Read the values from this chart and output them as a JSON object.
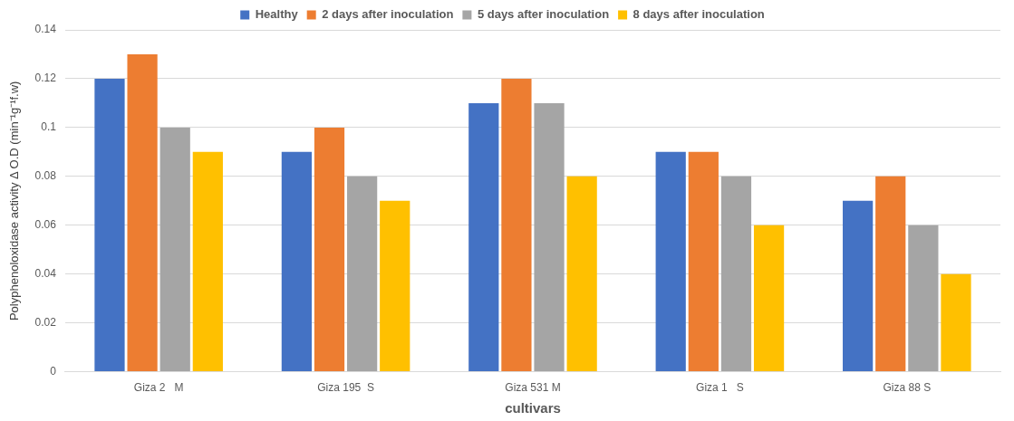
{
  "chart_data": {
    "type": "bar",
    "xlabel": "cultivars",
    "ylabel": "Polyphenoloxidase activity Δ O.D (min⁻¹g⁻¹f.w)",
    "categories": [
      "Giza 2   M",
      "Giza 195  S",
      "Giza 531 M",
      "Giza 1   S",
      "Giza 88 S"
    ],
    "series": [
      {
        "name": "Healthy",
        "color": "#4472c4",
        "values": [
          0.12,
          0.09,
          0.11,
          0.09,
          0.07
        ]
      },
      {
        "name": "2 days after inoculation",
        "color": "#ed7d31",
        "values": [
          0.13,
          0.1,
          0.12,
          0.09,
          0.08
        ]
      },
      {
        "name": "5 days after inoculation",
        "color": "#a5a5a5",
        "values": [
          0.1,
          0.08,
          0.11,
          0.08,
          0.06
        ]
      },
      {
        "name": "8 days after inoculation",
        "color": "#ffc000",
        "values": [
          0.09,
          0.07,
          0.08,
          0.06,
          0.04
        ]
      }
    ],
    "ylim": [
      0,
      0.14
    ],
    "yticks": [
      0,
      0.02,
      0.04,
      0.06,
      0.08,
      0.1,
      0.12,
      0.14
    ],
    "grid": "y",
    "legend": "top"
  }
}
